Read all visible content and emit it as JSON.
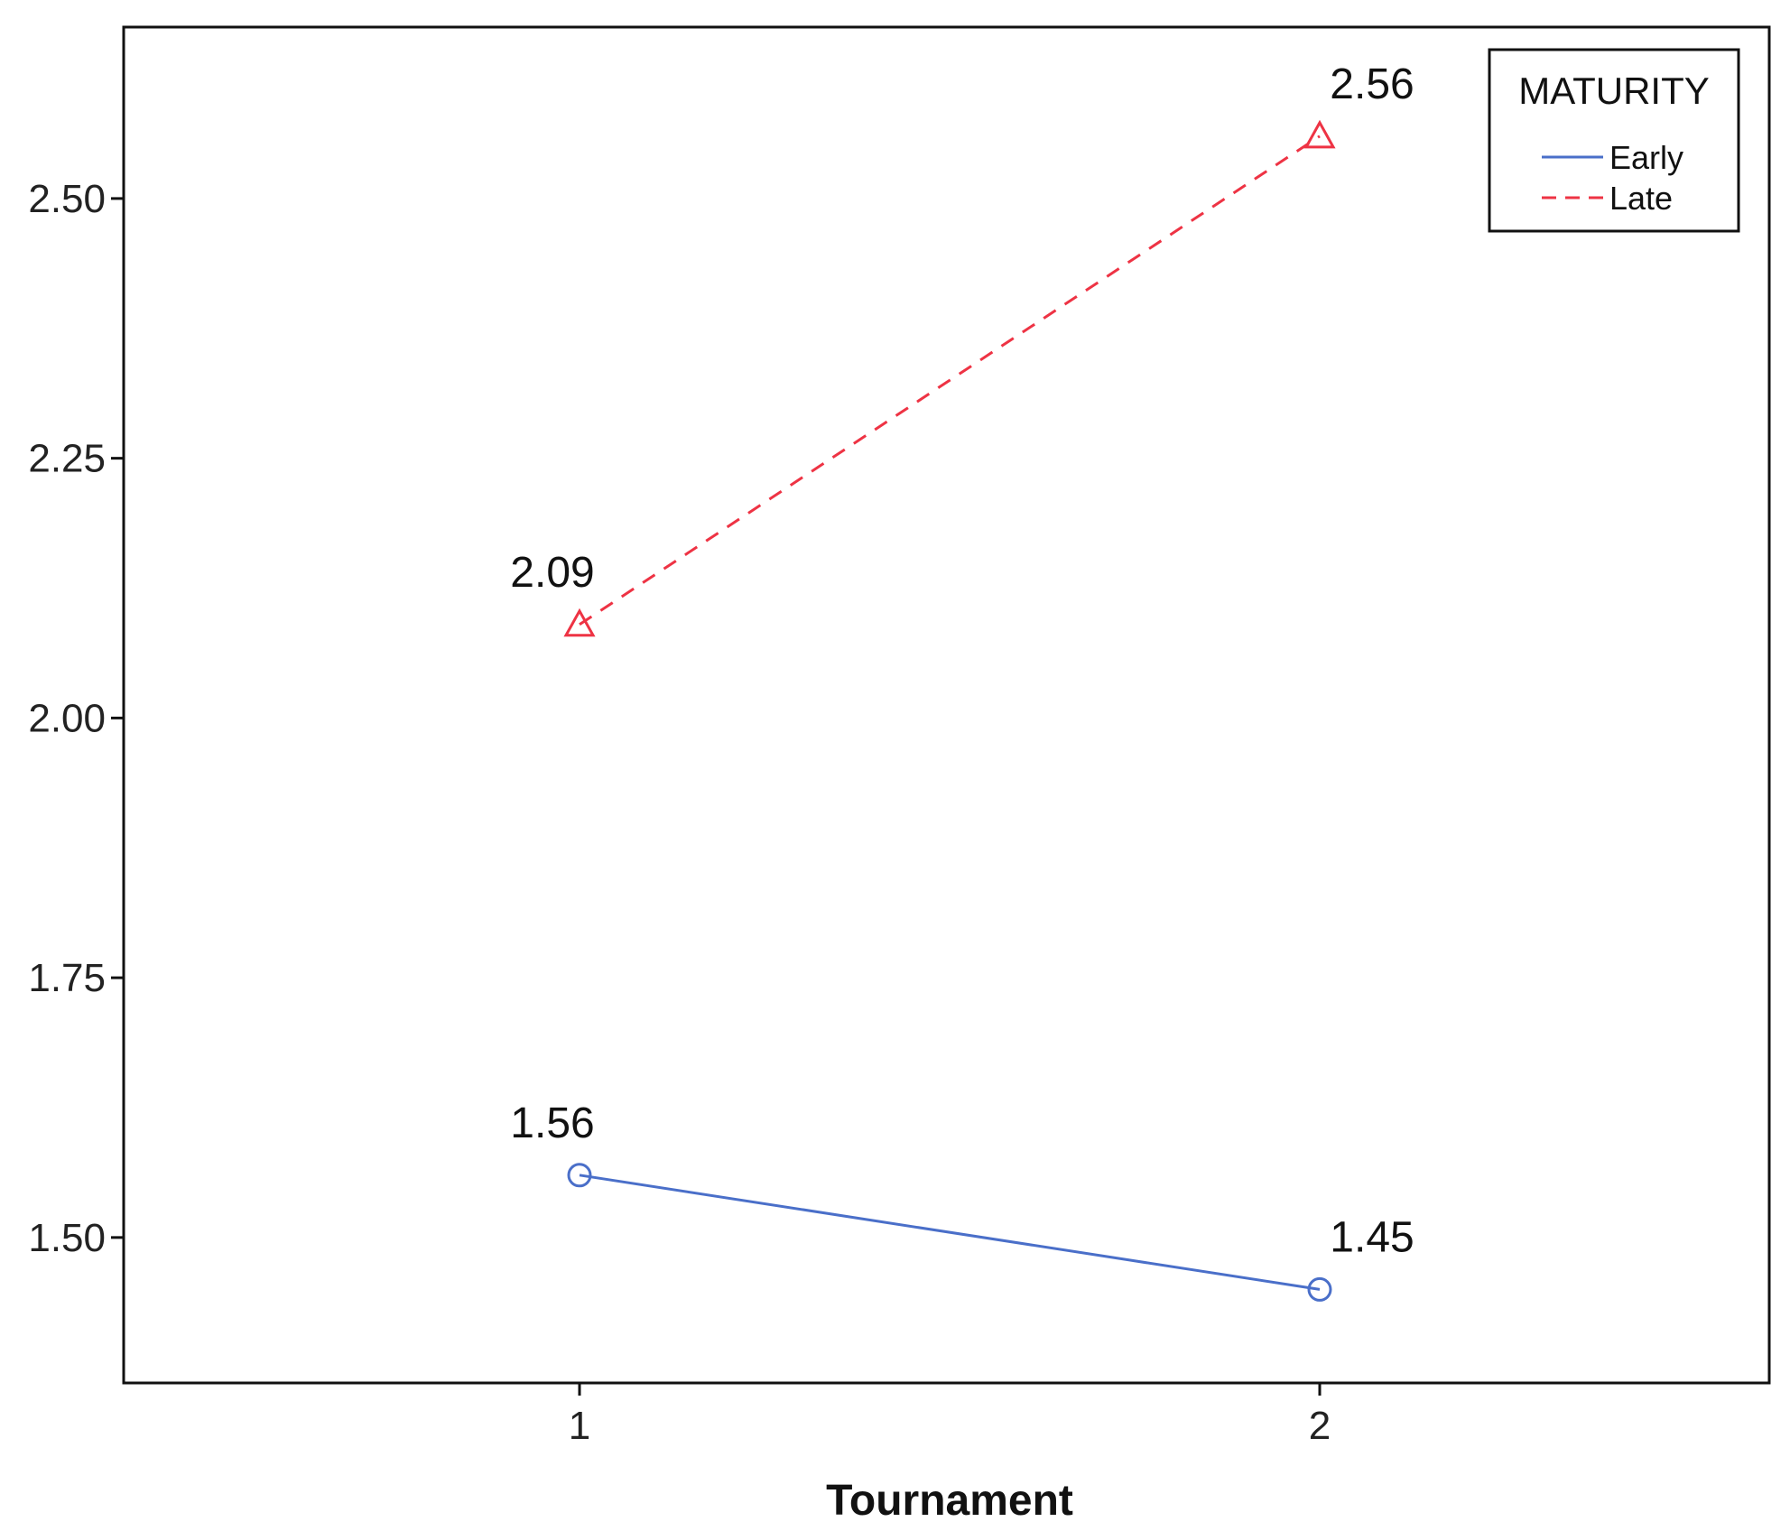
{
  "chart_data": {
    "type": "line",
    "categories": [
      "1",
      "2"
    ],
    "xlabel": "Tournament",
    "ylabel": "",
    "ylim": [
      1.36,
      2.665
    ],
    "yticks": [
      "1.50",
      "1.75",
      "2.00",
      "2.25",
      "2.50"
    ],
    "grid": false,
    "legend": {
      "title": "MATURITY",
      "position": "top-right"
    },
    "series": [
      {
        "name": "Early",
        "values": [
          1.56,
          1.45
        ],
        "labels": [
          "1.56",
          "1.45"
        ],
        "color": "#4a6fc9",
        "line_style": "solid",
        "marker": "circle"
      },
      {
        "name": "Late",
        "values": [
          2.09,
          2.56
        ],
        "labels": [
          "2.09",
          "2.56"
        ],
        "color": "#ee3344",
        "line_style": "dashed",
        "marker": "triangle"
      }
    ]
  }
}
